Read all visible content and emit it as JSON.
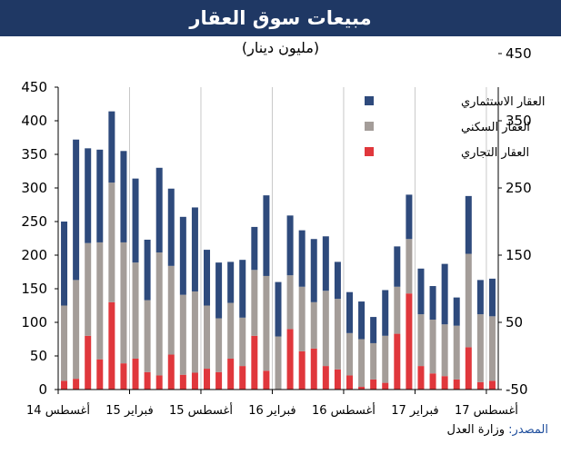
{
  "header": {
    "title": "مبيعات سوق العقار",
    "subtitle": "(مليون دينار)"
  },
  "source": {
    "label": "المصدر:",
    "value": "وزارة العدل"
  },
  "colors": {
    "title_bg": "#1f3864",
    "investment": "#2e4a7c",
    "residential": "#a49d99",
    "commercial": "#e0373c",
    "source_label": "#1f4e9d"
  },
  "chart_data": {
    "type": "bar",
    "stacked": true,
    "categories": [
      "Aug-14",
      "Sep-14",
      "Oct-14",
      "Nov-14",
      "Dec-14",
      "Jan-15",
      "Feb-15",
      "Mar-15",
      "Apr-15",
      "May-15",
      "Jun-15",
      "Jul-15",
      "Aug-15",
      "Sep-15",
      "Oct-15",
      "Nov-15",
      "Dec-15",
      "Jan-16",
      "Feb-16",
      "Mar-16",
      "Apr-16",
      "May-16",
      "Jun-16",
      "Jul-16",
      "Aug-16",
      "Sep-16",
      "Oct-16",
      "Nov-16",
      "Dec-16",
      "Jan-17",
      "Feb-17",
      "Mar-17",
      "Apr-17",
      "May-17",
      "Jun-17",
      "Jul-17",
      "Aug-17"
    ],
    "x_tick_labels": [
      {
        "index": 0,
        "label": "أغسطس 14"
      },
      {
        "index": 6,
        "label": "فبراير 15"
      },
      {
        "index": 12,
        "label": "أغسطس 15"
      },
      {
        "index": 18,
        "label": "فبراير 16"
      },
      {
        "index": 24,
        "label": "أغسطس 16"
      },
      {
        "index": 30,
        "label": "فبراير 17"
      },
      {
        "index": 36,
        "label": "أغسطس 17"
      }
    ],
    "series": [
      {
        "name": "العقار التجاري",
        "color": "#e0373c",
        "values": [
          13,
          16,
          80,
          45,
          130,
          39,
          46,
          26,
          21,
          52,
          22,
          25,
          31,
          26,
          46,
          35,
          80,
          28,
          0,
          90,
          57,
          61,
          35,
          30,
          21,
          4,
          15,
          10,
          83,
          143,
          35,
          24,
          20,
          15,
          63,
          11,
          13
        ]
      },
      {
        "name": "العقار السكني",
        "color": "#a49d99",
        "values": [
          112,
          147,
          138,
          174,
          178,
          180,
          143,
          107,
          183,
          132,
          119,
          121,
          94,
          80,
          83,
          72,
          98,
          141,
          79,
          80,
          96,
          69,
          112,
          105,
          63,
          71,
          54,
          70,
          70,
          81,
          77,
          80,
          77,
          80,
          139,
          101,
          96
        ]
      },
      {
        "name": "العقار الاستثماري",
        "color": "#2e4a7c",
        "values": [
          125,
          209,
          141,
          138,
          106,
          136,
          125,
          90,
          126,
          115,
          116,
          125,
          83,
          83,
          61,
          86,
          64,
          120,
          81,
          89,
          84,
          94,
          81,
          55,
          61,
          56,
          39,
          68,
          60,
          66,
          68,
          50,
          90,
          42,
          86,
          51,
          56
        ]
      }
    ],
    "totals": [
      250,
      372,
      359,
      357,
      414,
      355,
      314,
      223,
      330,
      299,
      257,
      271,
      208,
      189,
      190,
      193,
      242,
      289,
      160,
      259,
      237,
      224,
      228,
      190,
      145,
      131,
      108,
      148,
      213,
      290,
      180,
      154,
      187,
      137,
      288,
      163,
      165
    ],
    "y_left": {
      "min": 0,
      "max": 450,
      "ticks": [
        0,
        50,
        100,
        150,
        200,
        250,
        300,
        350,
        400,
        450
      ]
    },
    "y_right": {
      "ticks": [
        -50,
        50,
        150,
        250,
        350,
        450
      ]
    },
    "legend_position": "top-right",
    "grid": {
      "vertical": true,
      "horizontal": false
    }
  }
}
